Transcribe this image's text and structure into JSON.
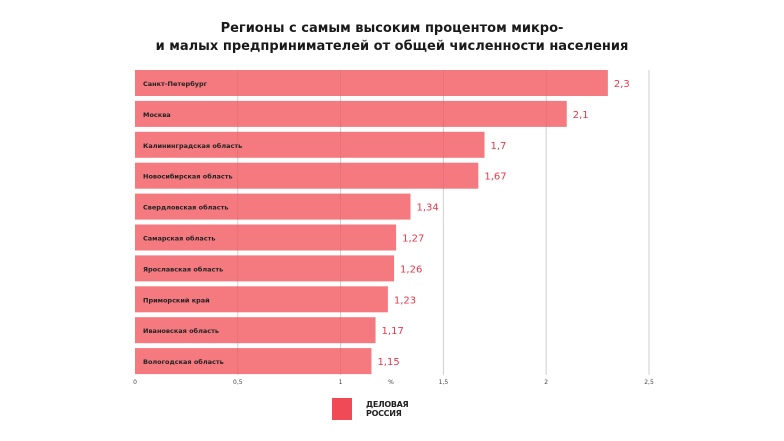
{
  "title_line1": "Регионы с самым высоким процентом микро-",
  "title_line2": "и малых предпринимателей от общей численности населения",
  "chart_data": {
    "type": "bar",
    "orientation": "horizontal",
    "title": "Регионы с самым высоким процентом микро- и малых предпринимателей от общей численности населения",
    "xlabel": "%",
    "categories": [
      "Санкт-Петербург",
      "Москва",
      "Калининградская область",
      "Новосибирская область",
      "Свердловская область",
      "Самарская область",
      "Ярославская область",
      "Приморский край",
      "Ивановская область",
      "Вологодская область"
    ],
    "values": [
      2.3,
      2.1,
      1.7,
      1.67,
      1.34,
      1.27,
      1.26,
      1.23,
      1.17,
      1.15
    ],
    "data_labels": [
      "2,3",
      "2,1",
      "1,7",
      "1,67",
      "1,34",
      "1,27",
      "1,26",
      "1,23",
      "1,17",
      "1,15"
    ],
    "xlim": [
      0,
      2.5
    ],
    "ticks": [
      0,
      0.5,
      1,
      1.5,
      2,
      2.5
    ],
    "tick_labels": [
      "0",
      "0,5",
      "1",
      "1,5",
      "2",
      "2,5"
    ],
    "grid": true,
    "bar_color": "#f47a80",
    "label_color": "#e8384a"
  },
  "logos": {
    "emblem": "Деловая Россия emblem",
    "brand_line1": "ДЕЛОВАЯ",
    "brand_line2": "РОССИЯ"
  }
}
